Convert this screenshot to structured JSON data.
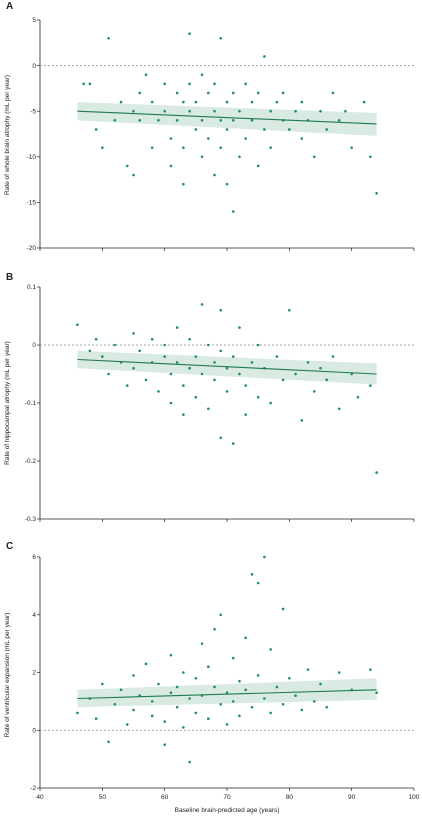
{
  "panels": [
    {
      "letter": "A",
      "ylabel": "Rate of whole brain atrophy (mL per year)",
      "y_ticks": [
        5,
        0,
        -5,
        -10,
        -15,
        -20
      ],
      "y_tick_labels": [
        "5",
        "0",
        "-5",
        "-10",
        "-15",
        "-20"
      ],
      "ylim": [
        -20,
        5
      ]
    },
    {
      "letter": "B",
      "ylabel": "Rate of hippocampal atrophy (mL per year)",
      "y_ticks": [
        0.1,
        0,
        -0.1,
        -0.2,
        -0.3
      ],
      "y_tick_labels": [
        "0.1",
        "0",
        "-0.1",
        "-0.2",
        "-0.3"
      ],
      "ylim": [
        -0.3,
        0.1
      ]
    },
    {
      "letter": "C",
      "ylabel": "Rate of ventricular expansion (mL per year)",
      "y_ticks": [
        6,
        4,
        2,
        0,
        -2
      ],
      "y_tick_labels": [
        "6",
        "4",
        "2",
        "0",
        "-2"
      ],
      "ylim": [
        -2,
        6
      ]
    }
  ],
  "x_axis": {
    "xlabel": "Baseline brain-predicted age (years)",
    "ticks": [
      40,
      50,
      60,
      70,
      80,
      90,
      100
    ],
    "tick_labels": [
      "40",
      "50",
      "60",
      "70",
      "80",
      "90",
      "100"
    ],
    "xlim": [
      40,
      100
    ]
  },
  "colors": {
    "points": "#1f8f5f",
    "fit": "#1f7a4d",
    "band": "#2a8a5c",
    "reference": "#888888"
  },
  "chart_data": [
    {
      "type": "scatter",
      "title": "A",
      "xlabel": "Baseline brain-predicted age (years)",
      "ylabel": "Rate of whole brain atrophy (mL per year)",
      "xlim": [
        40,
        100
      ],
      "ylim": [
        -20,
        5
      ],
      "reference_line_y": 0,
      "fit": {
        "x": [
          46,
          94
        ],
        "y": [
          -5.0,
          -6.4
        ],
        "ci_lower": [
          -6.0,
          -7.7
        ],
        "ci_upper": [
          -4.0,
          -5.2
        ]
      },
      "points": [
        [
          47,
          -2
        ],
        [
          48,
          -2
        ],
        [
          49,
          -7
        ],
        [
          50,
          -9
        ],
        [
          51,
          3
        ],
        [
          52,
          -6
        ],
        [
          53,
          -4
        ],
        [
          54,
          -11
        ],
        [
          55,
          -5
        ],
        [
          55,
          -12
        ],
        [
          56,
          -3
        ],
        [
          56,
          -6
        ],
        [
          57,
          -1
        ],
        [
          58,
          -4
        ],
        [
          58,
          -9
        ],
        [
          59,
          -6
        ],
        [
          60,
          -2
        ],
        [
          60,
          -5
        ],
        [
          61,
          -8
        ],
        [
          61,
          -11
        ],
        [
          62,
          -3
        ],
        [
          62,
          -6
        ],
        [
          63,
          -4
        ],
        [
          63,
          -9
        ],
        [
          63,
          -13
        ],
        [
          64,
          3.5
        ],
        [
          64,
          -2
        ],
        [
          64,
          -5
        ],
        [
          65,
          -7
        ],
        [
          65,
          -4
        ],
        [
          66,
          -1
        ],
        [
          66,
          -6
        ],
        [
          66,
          -10
        ],
        [
          67,
          -3
        ],
        [
          67,
          -8
        ],
        [
          68,
          -5
        ],
        [
          68,
          -12
        ],
        [
          68,
          -2
        ],
        [
          69,
          3
        ],
        [
          69,
          -6
        ],
        [
          69,
          -9
        ],
        [
          70,
          -4
        ],
        [
          70,
          -7
        ],
        [
          70,
          -13
        ],
        [
          71,
          -3
        ],
        [
          71,
          -6
        ],
        [
          71,
          -16
        ],
        [
          72,
          -5
        ],
        [
          72,
          -10
        ],
        [
          73,
          -2
        ],
        [
          73,
          -8
        ],
        [
          74,
          -4
        ],
        [
          74,
          -6
        ],
        [
          75,
          -11
        ],
        [
          75,
          -3
        ],
        [
          76,
          -7
        ],
        [
          76,
          1
        ],
        [
          77,
          -5
        ],
        [
          77,
          -9
        ],
        [
          78,
          -4
        ],
        [
          79,
          -6
        ],
        [
          79,
          -3
        ],
        [
          80,
          -7
        ],
        [
          81,
          -5
        ],
        [
          82,
          -8
        ],
        [
          82,
          -4
        ],
        [
          83,
          -6
        ],
        [
          84,
          -10
        ],
        [
          85,
          -5
        ],
        [
          86,
          -7
        ],
        [
          87,
          -3
        ],
        [
          88,
          -6
        ],
        [
          89,
          -5
        ],
        [
          90,
          -9
        ],
        [
          92,
          -4
        ],
        [
          93,
          -10
        ],
        [
          94,
          -14
        ]
      ]
    },
    {
      "type": "scatter",
      "title": "B",
      "xlabel": "Baseline brain-predicted age (years)",
      "ylabel": "Rate of hippocampal atrophy (mL per year)",
      "xlim": [
        40,
        100
      ],
      "ylim": [
        -0.3,
        0.1
      ],
      "reference_line_y": 0,
      "fit": {
        "x": [
          46,
          94
        ],
        "y": [
          -0.025,
          -0.05
        ],
        "ci_lower": [
          -0.04,
          -0.068
        ],
        "ci_upper": [
          -0.01,
          -0.032
        ]
      },
      "points": [
        [
          46,
          0.035
        ],
        [
          48,
          -0.01
        ],
        [
          49,
          0.01
        ],
        [
          50,
          -0.02
        ],
        [
          51,
          -0.05
        ],
        [
          52,
          0.0
        ],
        [
          53,
          -0.03
        ],
        [
          54,
          -0.07
        ],
        [
          55,
          0.02
        ],
        [
          55,
          -0.04
        ],
        [
          56,
          -0.01
        ],
        [
          57,
          -0.06
        ],
        [
          58,
          0.01
        ],
        [
          58,
          -0.03
        ],
        [
          59,
          -0.08
        ],
        [
          60,
          -0.02
        ],
        [
          60,
          0.0
        ],
        [
          61,
          -0.05
        ],
        [
          61,
          -0.1
        ],
        [
          62,
          0.03
        ],
        [
          62,
          -0.03
        ],
        [
          63,
          -0.07
        ],
        [
          63,
          -0.12
        ],
        [
          64,
          0.01
        ],
        [
          64,
          -0.04
        ],
        [
          65,
          -0.02
        ],
        [
          65,
          -0.09
        ],
        [
          66,
          0.07
        ],
        [
          66,
          -0.05
        ],
        [
          67,
          0.0
        ],
        [
          67,
          -0.11
        ],
        [
          68,
          -0.03
        ],
        [
          68,
          -0.06
        ],
        [
          69,
          0.06
        ],
        [
          69,
          -0.01
        ],
        [
          69,
          -0.16
        ],
        [
          70,
          -0.04
        ],
        [
          70,
          -0.08
        ],
        [
          71,
          -0.02
        ],
        [
          71,
          -0.17
        ],
        [
          72,
          -0.05
        ],
        [
          72,
          0.03
        ],
        [
          73,
          -0.07
        ],
        [
          73,
          -0.12
        ],
        [
          74,
          -0.03
        ],
        [
          75,
          -0.09
        ],
        [
          75,
          0.0
        ],
        [
          76,
          -0.04
        ],
        [
          77,
          -0.1
        ],
        [
          78,
          -0.02
        ],
        [
          79,
          -0.06
        ],
        [
          80,
          0.06
        ],
        [
          81,
          -0.05
        ],
        [
          82,
          -0.13
        ],
        [
          83,
          -0.03
        ],
        [
          84,
          -0.08
        ],
        [
          85,
          -0.04
        ],
        [
          86,
          -0.06
        ],
        [
          87,
          -0.02
        ],
        [
          88,
          -0.11
        ],
        [
          90,
          -0.05
        ],
        [
          91,
          -0.09
        ],
        [
          93,
          -0.07
        ],
        [
          94,
          -0.22
        ]
      ]
    },
    {
      "type": "scatter",
      "title": "C",
      "xlabel": "Baseline brain-predicted age (years)",
      "ylabel": "Rate of ventricular expansion (mL per year)",
      "xlim": [
        40,
        100
      ],
      "ylim": [
        -2,
        6
      ],
      "reference_line_y": 0,
      "fit": {
        "x": [
          46,
          94
        ],
        "y": [
          1.1,
          1.4
        ],
        "ci_lower": [
          0.8,
          1.05
        ],
        "ci_upper": [
          1.4,
          1.8
        ]
      },
      "points": [
        [
          46,
          0.6
        ],
        [
          48,
          1.1
        ],
        [
          49,
          0.4
        ],
        [
          50,
          1.6
        ],
        [
          51,
          -0.4
        ],
        [
          52,
          0.9
        ],
        [
          53,
          1.4
        ],
        [
          54,
          0.2
        ],
        [
          55,
          1.9
        ],
        [
          55,
          0.7
        ],
        [
          56,
          1.2
        ],
        [
          57,
          2.3
        ],
        [
          58,
          0.5
        ],
        [
          58,
          1.0
        ],
        [
          59,
          1.6
        ],
        [
          60,
          0.3
        ],
        [
          60,
          -0.5
        ],
        [
          61,
          1.3
        ],
        [
          61,
          2.6
        ],
        [
          62,
          0.8
        ],
        [
          62,
          1.5
        ],
        [
          63,
          0.1
        ],
        [
          63,
          2.0
        ],
        [
          64,
          1.1
        ],
        [
          64,
          -1.1
        ],
        [
          65,
          0.6
        ],
        [
          65,
          1.8
        ],
        [
          66,
          3.0
        ],
        [
          66,
          1.2
        ],
        [
          67,
          0.4
        ],
        [
          67,
          2.2
        ],
        [
          68,
          1.5
        ],
        [
          68,
          3.5
        ],
        [
          69,
          0.9
        ],
        [
          69,
          4.0
        ],
        [
          70,
          1.3
        ],
        [
          70,
          0.2
        ],
        [
          71,
          2.5
        ],
        [
          71,
          1.0
        ],
        [
          72,
          1.7
        ],
        [
          72,
          0.5
        ],
        [
          73,
          3.2
        ],
        [
          73,
          1.4
        ],
        [
          74,
          5.4
        ],
        [
          74,
          0.8
        ],
        [
          75,
          5.1
        ],
        [
          75,
          1.9
        ],
        [
          76,
          6.0
        ],
        [
          76,
          1.1
        ],
        [
          77,
          2.8
        ],
        [
          77,
          0.6
        ],
        [
          78,
          1.5
        ],
        [
          79,
          4.2
        ],
        [
          79,
          0.9
        ],
        [
          80,
          1.8
        ],
        [
          81,
          1.2
        ],
        [
          82,
          0.7
        ],
        [
          83,
          2.1
        ],
        [
          84,
          1.0
        ],
        [
          85,
          1.6
        ],
        [
          86,
          0.8
        ],
        [
          88,
          2.0
        ],
        [
          90,
          1.4
        ],
        [
          93,
          2.1
        ],
        [
          94,
          1.3
        ]
      ]
    }
  ]
}
